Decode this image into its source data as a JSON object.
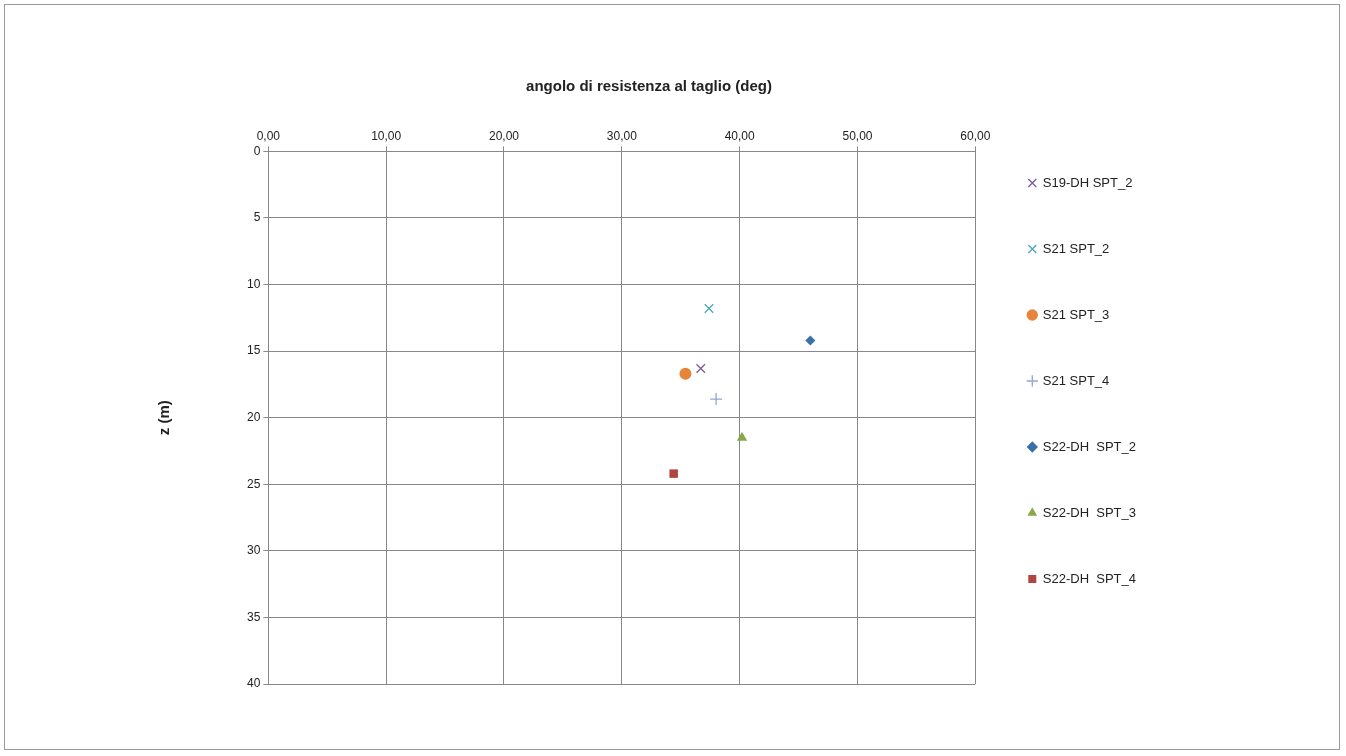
{
  "chart_data": {
    "type": "scatter",
    "title": "angolo di resistenza al taglio (deg)",
    "ylabel": "z (m)",
    "xlim": [
      0,
      60
    ],
    "xticks": [
      {
        "value": 0,
        "label": "0,00"
      },
      {
        "value": 10,
        "label": "10,00"
      },
      {
        "value": 20,
        "label": "20,00"
      },
      {
        "value": 30,
        "label": "30,00"
      },
      {
        "value": 40,
        "label": "40,00"
      },
      {
        "value": 50,
        "label": "50,00"
      },
      {
        "value": 60,
        "label": "60,00"
      }
    ],
    "ylim": [
      40,
      0
    ],
    "yticks": [
      0,
      5,
      10,
      15,
      20,
      25,
      30,
      35,
      40
    ],
    "grid": true,
    "legend": "right",
    "series": [
      {
        "name": "S19-DH SPT_2",
        "color": "#7f5a99",
        "marker": "cross",
        "x": [
          36.7
        ],
        "values": [
          16.3
        ]
      },
      {
        "name": "S21 SPT_2",
        "color": "#4aa5c0",
        "marker": "cross",
        "x": [
          37.4
        ],
        "values": [
          11.8
        ]
      },
      {
        "name": "S21 SPT_3",
        "color": "#e6843a",
        "marker": "circle",
        "x": [
          35.4
        ],
        "values": [
          16.7
        ]
      },
      {
        "name": "S21 SPT_4",
        "color": "#8ea8d6",
        "marker": "plus",
        "x": [
          38.0
        ],
        "values": [
          18.6
        ]
      },
      {
        "name": "S22-DH  SPT_2",
        "color": "#3a6fa8",
        "marker": "diamond",
        "x": [
          46.0
        ],
        "values": [
          14.2
        ]
      },
      {
        "name": "S22-DH  SPT_3",
        "color": "#88a74a",
        "marker": "triangle",
        "x": [
          40.2
        ],
        "values": [
          21.5
        ]
      },
      {
        "name": "S22-DH  SPT_4",
        "color": "#b04442",
        "marker": "square",
        "x": [
          34.4
        ],
        "values": [
          24.2
        ]
      }
    ]
  }
}
